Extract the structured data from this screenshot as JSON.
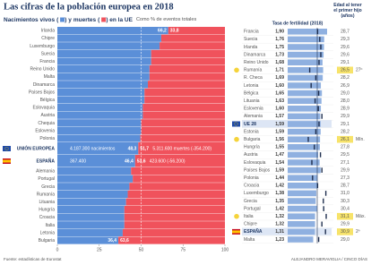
{
  "title": "Las cifras de la población europea en 2018",
  "source": "Fuente: estadísticas de Eurostat",
  "credit": "ALEJANDRO MERAVIGLIA / CINCO DÍAS",
  "chart_data": [
    {
      "type": "stacked-hbar",
      "legend_connectors": [
        "(",
        ") y",
        "(",
        ") en la UE"
      ],
      "note": "Como % de eventos totales",
      "categories": [
        "Irlanda",
        "Chipre",
        "Luxemburgo",
        "Suecia",
        "Francia",
        "Reino Unido",
        "Malta",
        "Dinamarca",
        "Países Bajos",
        "Bélgica",
        "Eslovaquia",
        "Austria",
        "Chequia",
        "Eslovenia",
        "Polonia",
        "UNIÓN EUROPEA",
        "ESPAÑA",
        "Alemania",
        "Portugal",
        "Grecia",
        "Rumanía",
        "Lituania",
        "Hungría",
        "Croacia",
        "Italia",
        "Letonia",
        "Bulgaria"
      ],
      "highlight_rows": [
        15,
        16
      ],
      "series": [
        {
          "name": "Nacimientos vivos",
          "color": "#5b8fd8",
          "values": [
            66.2,
            62,
            61,
            56,
            56,
            55,
            55,
            54,
            52,
            52,
            51,
            51,
            50,
            50,
            49.5,
            48.3,
            46.4,
            44,
            45,
            43,
            42,
            41,
            40,
            40,
            40,
            39,
            36.4
          ],
          "value_labels": [
            "66,2",
            null,
            null,
            null,
            null,
            null,
            null,
            null,
            null,
            null,
            null,
            null,
            null,
            null,
            null,
            "48,3",
            "46,4",
            null,
            null,
            null,
            null,
            null,
            null,
            null,
            null,
            null,
            "36,4"
          ],
          "count_labels": [
            null,
            null,
            null,
            null,
            null,
            null,
            null,
            null,
            null,
            null,
            null,
            null,
            null,
            null,
            null,
            "4.187.300 nacimientos",
            "367.400",
            null,
            null,
            null,
            null,
            null,
            null,
            null,
            null,
            null,
            null
          ]
        },
        {
          "name": "muertes",
          "color": "#f0525c",
          "values": [
            33.8,
            38,
            39,
            44,
            44,
            45,
            45,
            46,
            48,
            48,
            49,
            49,
            50,
            50,
            50.5,
            51.7,
            53.6,
            56,
            55,
            57,
            58,
            59,
            60,
            60,
            60,
            61,
            63.6
          ],
          "value_labels": [
            "33,8",
            null,
            null,
            null,
            null,
            null,
            null,
            null,
            null,
            null,
            null,
            null,
            null,
            null,
            null,
            "51,7",
            "53,6",
            null,
            null,
            null,
            null,
            null,
            null,
            null,
            null,
            null,
            "63,6"
          ],
          "count_labels": [
            null,
            null,
            null,
            null,
            null,
            null,
            null,
            null,
            null,
            null,
            null,
            null,
            null,
            null,
            null,
            "5.311.600 muertes (-354.200)",
            "423.600 (-56.200)",
            null,
            null,
            null,
            null,
            null,
            null,
            null,
            null,
            null,
            null
          ]
        }
      ],
      "xlim": [
        0,
        100
      ],
      "xticks": [
        0,
        25,
        50,
        75,
        100
      ],
      "reference_line": 50
    },
    {
      "type": "table-bars",
      "categories": [
        "Francia",
        "Suecia",
        "Irlanda",
        "Dinamarca",
        "Reino Unido",
        "Rumanía",
        "R. Checa",
        "Letonia",
        "Bélgica",
        "Lituania",
        "Eslovenia",
        "Alemania",
        "UE 28",
        "Estonia",
        "Bulgaria",
        "Hungría",
        "Austria",
        "Eslovaquia",
        "Países Bajos",
        "Polonia",
        "Croacia",
        "Luxemburgo",
        "Grecia",
        "Portugal",
        "Italia",
        "Chipre",
        "ESPAÑA",
        "Malta"
      ],
      "highlight_rows": [
        12,
        26
      ],
      "series": [
        {
          "name": "Tasa de fertilidad (2018)",
          "color": "#8fb0e0",
          "values": [
            1.9,
            1.76,
            1.75,
            1.73,
            1.68,
            1.71,
            1.69,
            1.6,
            1.65,
            1.63,
            1.6,
            1.57,
            1.59,
            1.59,
            1.56,
            1.55,
            1.47,
            1.54,
            1.59,
            1.44,
            1.42,
            1.38,
            1.35,
            1.42,
            1.32,
            1.32,
            1.31,
            1.23
          ],
          "value_labels": [
            "1,90",
            "1,76",
            "1,75",
            "1,73",
            "1,68",
            "1,71",
            "1,69",
            "1,60",
            "1,65",
            "1,63",
            "1,60",
            "1,57",
            "1,59",
            "1,59",
            "1,56",
            "1,55",
            "1,47",
            "1,54",
            "1,59",
            "1,44",
            "1,42",
            "1,38",
            "1,35",
            "1,42",
            "1,32",
            "1,32",
            "1,31",
            "1,23"
          ]
        },
        {
          "name": "Edad al tener el primer hijo (años)",
          "color": "#1f2f4f",
          "values": [
            28.7,
            29.3,
            29.6,
            29.6,
            29.1,
            26.5,
            28.2,
            26.9,
            29.0,
            28.0,
            28.9,
            29.9,
            29.1,
            28.2,
            26.1,
            27.8,
            29.5,
            27.1,
            29.9,
            27.3,
            28.7,
            31.0,
            30.3,
            30.4,
            31.1,
            29.9,
            30.9,
            29.0
          ],
          "value_labels": [
            "28,7",
            "29,3",
            "29,6",
            "29,6",
            "29,1",
            "26,5",
            "28,2",
            "26,9",
            "29,0",
            "28,0",
            "28,9",
            "29,9",
            "29,1",
            "28,2",
            "26,1",
            "27,8",
            "29,5",
            "27,1",
            "29,9",
            "27,3",
            "28,7",
            "31,0",
            "30,3",
            "30,4",
            "31,1",
            "29,9",
            "30,9",
            "29,0"
          ],
          "notes": [
            null,
            null,
            null,
            null,
            null,
            "27º",
            null,
            null,
            null,
            null,
            null,
            null,
            null,
            null,
            "Mín.",
            null,
            null,
            null,
            null,
            null,
            null,
            null,
            null,
            null,
            "Máx.",
            null,
            "2º",
            null
          ]
        }
      ]
    }
  ]
}
